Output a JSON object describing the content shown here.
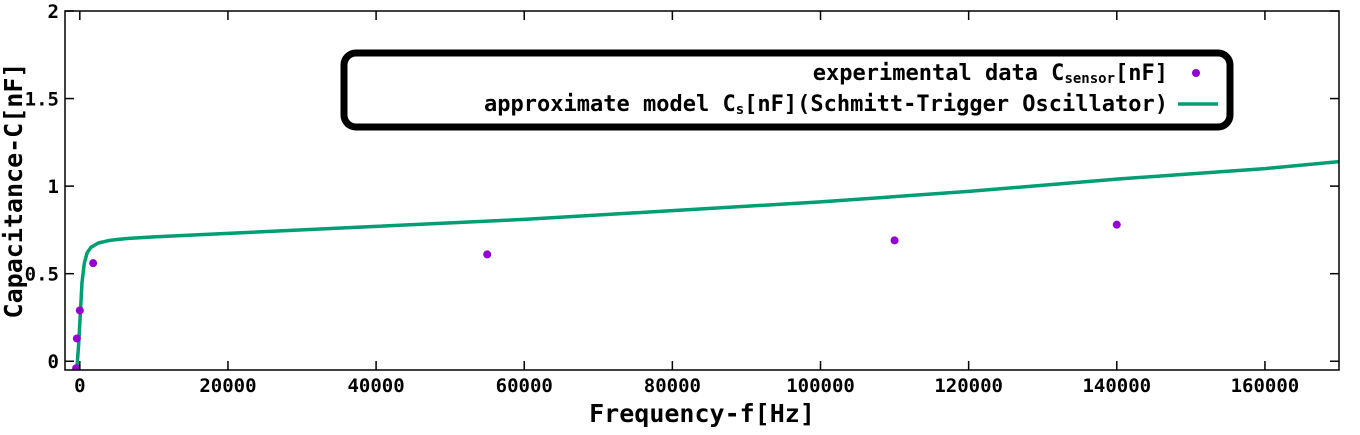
{
  "chart_data": {
    "type": "scatter",
    "xlabel": "Frequency-f[Hz]",
    "ylabel": "Capacitance-C[nF]",
    "xlim": [
      -2000,
      170000
    ],
    "ylim": [
      -0.05,
      2
    ],
    "x_ticks": [
      "0",
      "20000",
      "40000",
      "60000",
      "80000",
      "100000",
      "120000",
      "140000",
      "160000"
    ],
    "x_tick_values": [
      0,
      20000,
      40000,
      60000,
      80000,
      100000,
      120000,
      140000,
      160000
    ],
    "y_ticks": [
      "0",
      "0.5",
      "1",
      "1.5",
      "2"
    ],
    "y_tick_values": [
      0,
      0.5,
      1,
      1.5,
      2
    ],
    "grid": false,
    "legend_position": "top-right",
    "series": [
      {
        "name_main": "experimental data C",
        "name_sub": "sensor",
        "name_tail": "[nF]",
        "kind": "scatter",
        "color": "#9400d3",
        "points": [
          {
            "x": -500,
            "y": -0.04
          },
          {
            "x": -400,
            "y": 0.13
          },
          {
            "x": 0,
            "y": 0.29
          },
          {
            "x": 1800,
            "y": 0.56
          },
          {
            "x": 55000,
            "y": 0.61
          },
          {
            "x": 110000,
            "y": 0.69
          },
          {
            "x": 140000,
            "y": 0.78
          }
        ]
      },
      {
        "name_main": "approximate model C",
        "name_sub": "s",
        "name_tail": "[nF](Schmitt-Trigger Oscillator)",
        "kind": "line",
        "color": "#009e73",
        "points": [
          {
            "x": -400,
            "y": -0.04
          },
          {
            "x": -150,
            "y": 0.1
          },
          {
            "x": 100,
            "y": 0.3
          },
          {
            "x": 300,
            "y": 0.45
          },
          {
            "x": 600,
            "y": 0.56
          },
          {
            "x": 1000,
            "y": 0.62
          },
          {
            "x": 1500,
            "y": 0.65
          },
          {
            "x": 2500,
            "y": 0.675
          },
          {
            "x": 4000,
            "y": 0.69
          },
          {
            "x": 6000,
            "y": 0.7
          },
          {
            "x": 10000,
            "y": 0.71
          },
          {
            "x": 20000,
            "y": 0.73
          },
          {
            "x": 40000,
            "y": 0.77
          },
          {
            "x": 60000,
            "y": 0.81
          },
          {
            "x": 80000,
            "y": 0.86
          },
          {
            "x": 100000,
            "y": 0.91
          },
          {
            "x": 120000,
            "y": 0.97
          },
          {
            "x": 140000,
            "y": 1.04
          },
          {
            "x": 160000,
            "y": 1.1
          },
          {
            "x": 170000,
            "y": 1.14
          }
        ]
      }
    ]
  }
}
